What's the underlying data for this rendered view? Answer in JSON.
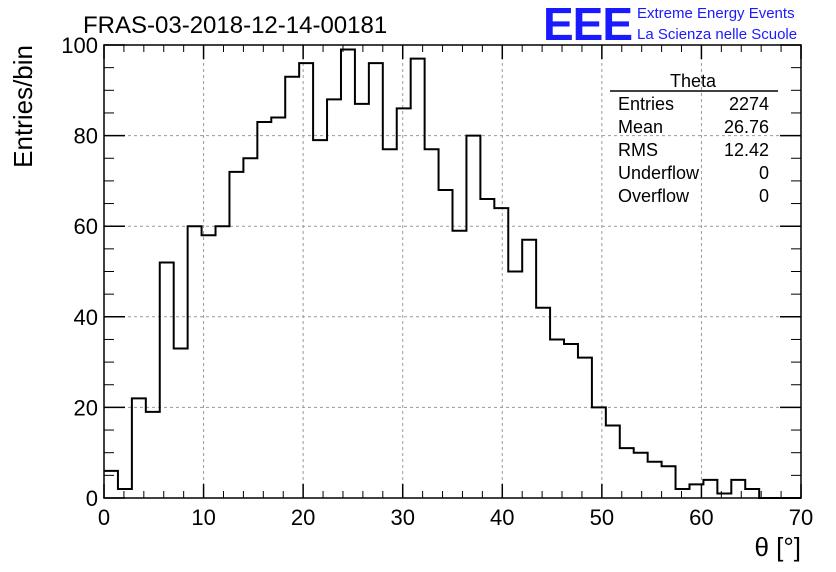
{
  "header": {
    "run_title": "FRAS-03-2018-12-14-00181",
    "logo_text": "EEE",
    "logo_line1": "Extreme Energy Events",
    "logo_line2": "La Scienza nelle Scuole",
    "logo_color": "#1a1aff"
  },
  "stats": {
    "title": "Theta",
    "rows": [
      {
        "label": "Entries",
        "value": "2274"
      },
      {
        "label": "Mean",
        "value": "26.76"
      },
      {
        "label": "RMS",
        "value": "12.42"
      },
      {
        "label": "Underflow",
        "value": "0"
      },
      {
        "label": "Overflow",
        "value": "0"
      }
    ]
  },
  "chart_data": {
    "type": "histogram",
    "xlabel": "θ [°]",
    "ylabel": "Entries/bin",
    "xlim": [
      0,
      70
    ],
    "ylim": [
      0,
      100
    ],
    "bin_width": 1.4,
    "x_ticks": [
      "0",
      "10",
      "20",
      "30",
      "40",
      "50",
      "60",
      "70"
    ],
    "y_ticks": [
      "0",
      "20",
      "40",
      "60",
      "80",
      "100"
    ],
    "grid": true,
    "values": [
      6,
      2,
      22,
      19,
      52,
      33,
      60,
      58,
      60,
      72,
      75,
      83,
      84,
      93,
      96,
      79,
      88,
      99,
      87,
      96,
      77,
      86,
      97,
      77,
      68,
      59,
      80,
      66,
      64,
      50,
      57,
      42,
      35,
      34,
      31,
      20,
      16,
      11,
      10,
      8,
      7,
      2,
      3,
      4,
      1,
      4,
      2,
      0,
      0,
      0
    ]
  }
}
